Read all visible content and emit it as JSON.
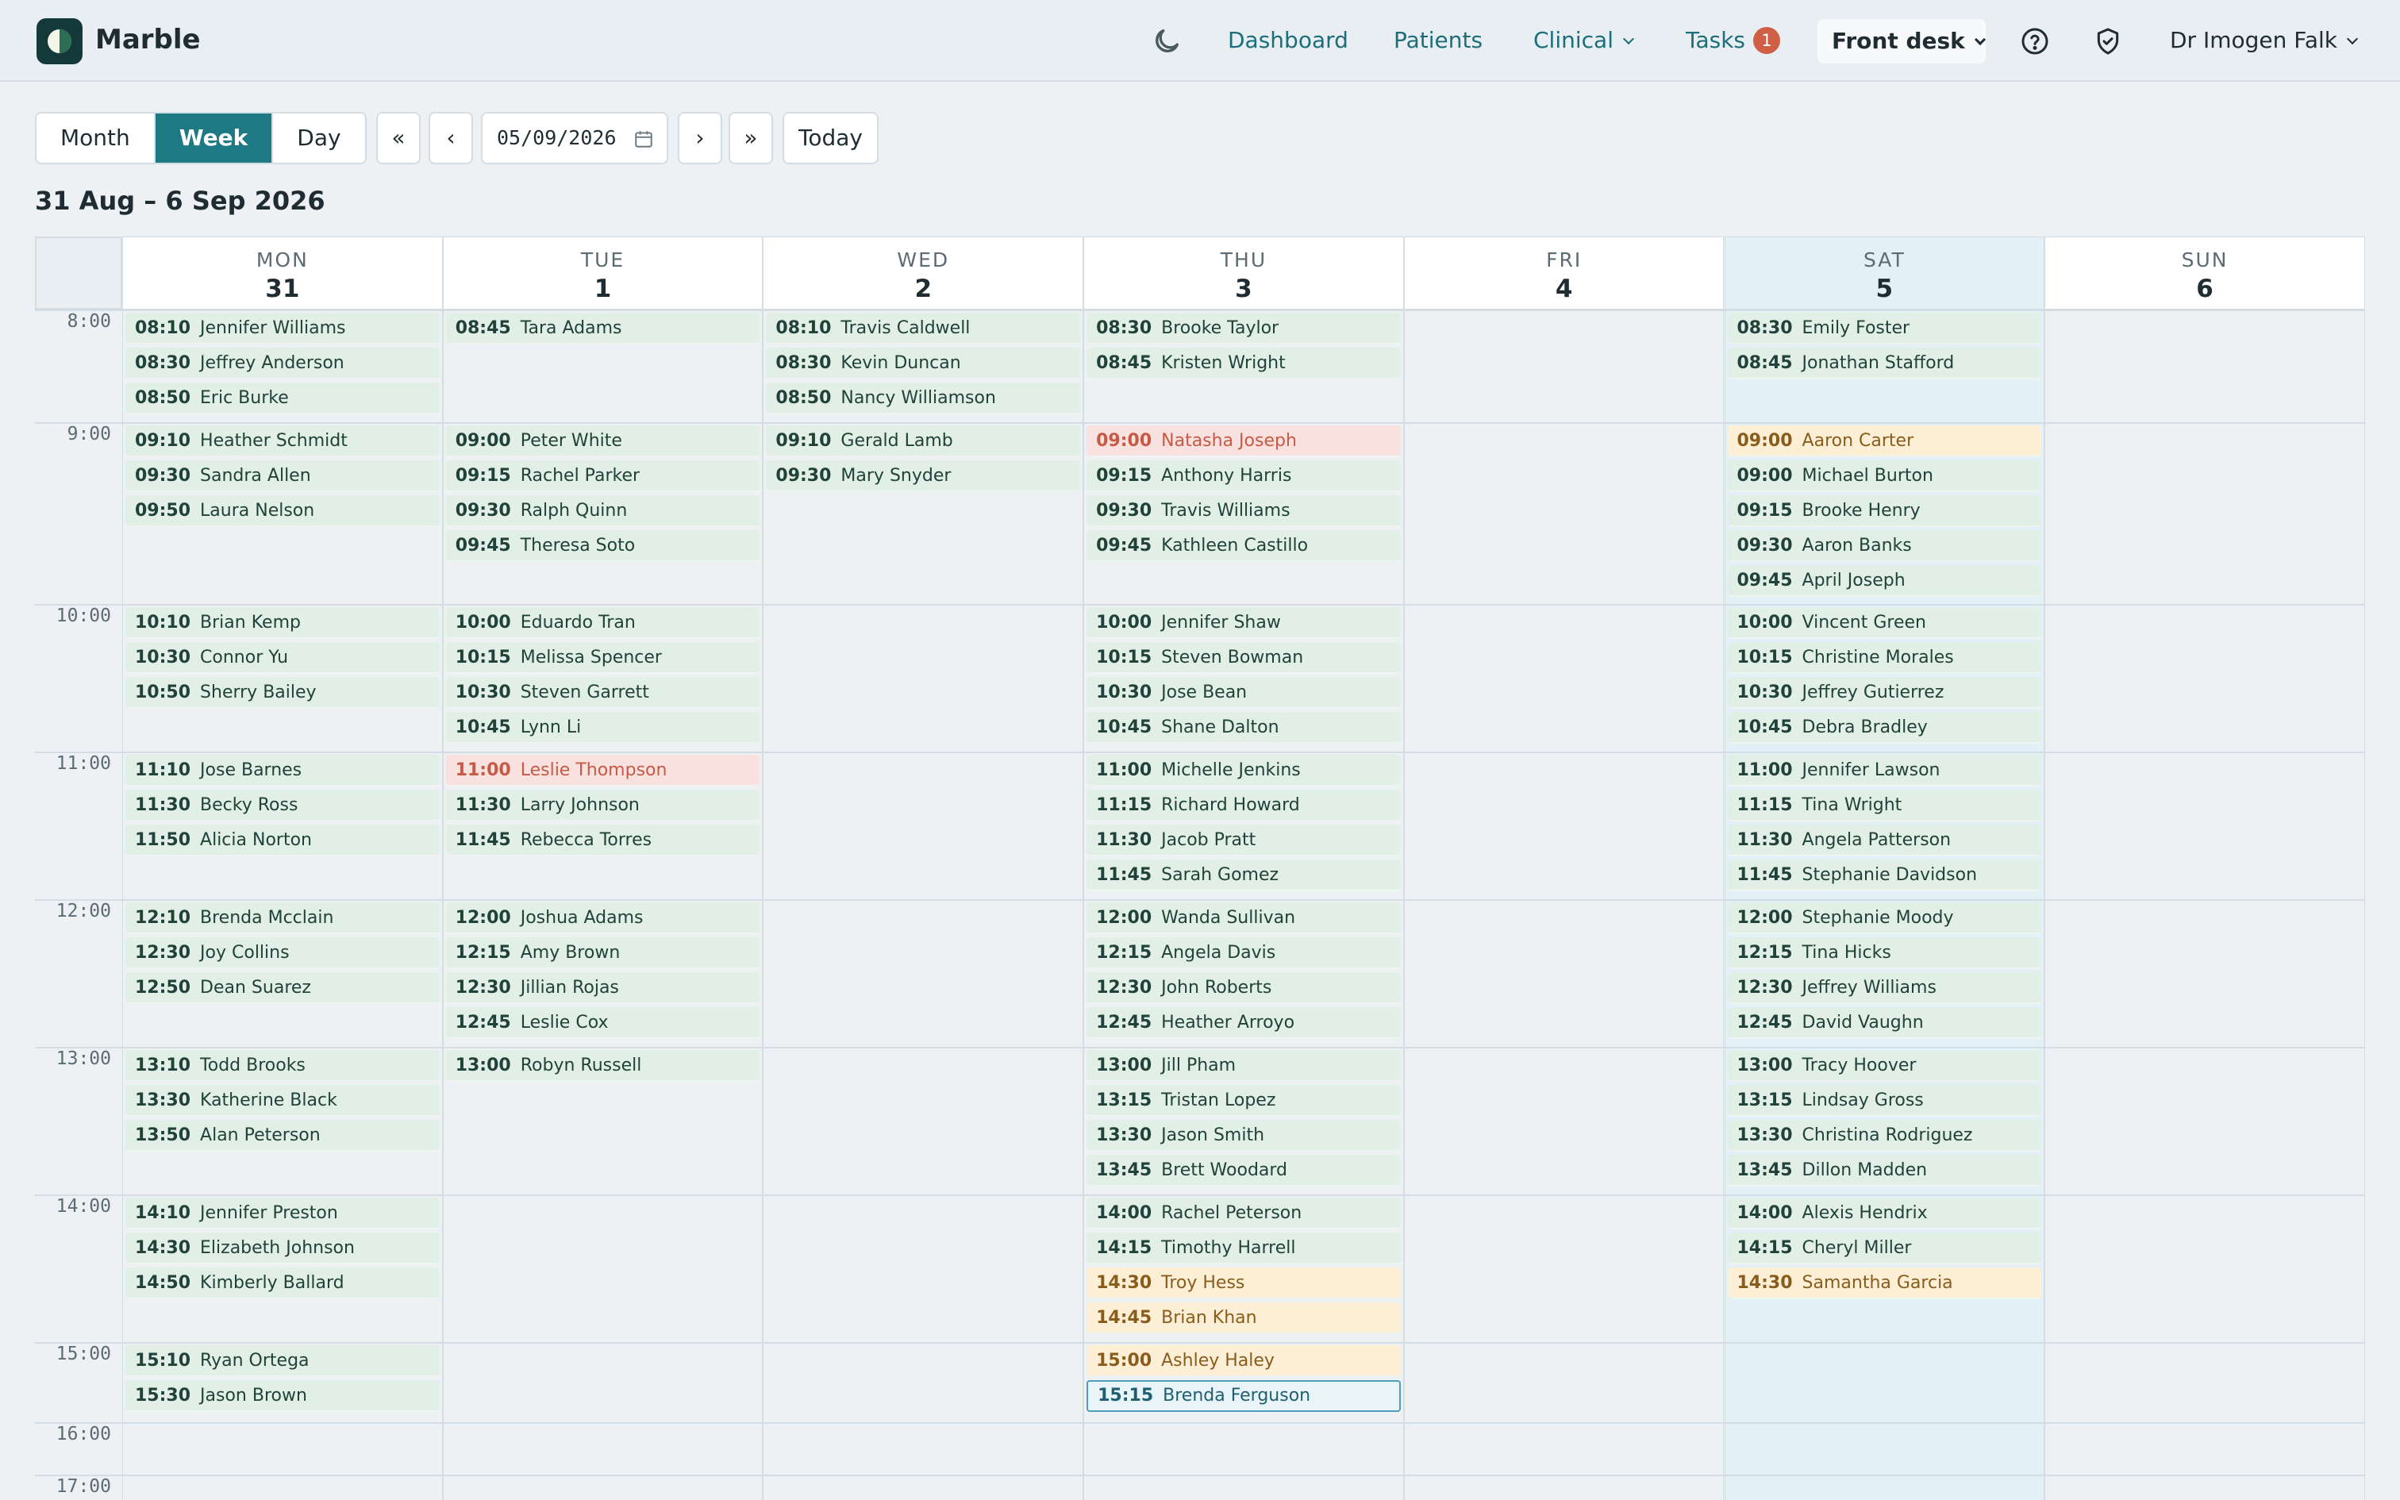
{
  "app": {
    "name": "Marble"
  },
  "nav": {
    "theme_icon": "moon-icon",
    "dashboard": "Dashboard",
    "patients": "Patients",
    "clinical": "Clinical",
    "tasks": "Tasks",
    "tasks_count": "1",
    "front_desk": "Front desk",
    "help_icon": "help-circle-icon",
    "shield_icon": "shield-check-icon",
    "user": "Dr Imogen Falk"
  },
  "toolbar": {
    "views": [
      "Month",
      "Week",
      "Day"
    ],
    "active_view": "Week",
    "first": "«",
    "prev": "‹",
    "date": "05/09/2026",
    "next": "›",
    "last": "»",
    "today": "Today"
  },
  "range_title": "31 Aug – 6 Sep 2026",
  "days": [
    {
      "name": "MON",
      "num": "31"
    },
    {
      "name": "TUE",
      "num": "1"
    },
    {
      "name": "WED",
      "num": "2"
    },
    {
      "name": "THU",
      "num": "3"
    },
    {
      "name": "FRI",
      "num": "4"
    },
    {
      "name": "SAT",
      "num": "5",
      "today": true
    },
    {
      "name": "SUN",
      "num": "6"
    }
  ],
  "hours": [
    "8:00",
    "9:00",
    "10:00",
    "11:00",
    "12:00",
    "13:00",
    "14:00",
    "15:00",
    "16:00",
    "17:00"
  ],
  "colors": {
    "booked": "#e2efe6",
    "urgent": "#f8e1de",
    "pending": "#fcefd5",
    "selected": "#e9f4f8",
    "accent": "#1d7a84"
  },
  "appointments": [
    {
      "day": 0,
      "hour": 0,
      "time": "08:10",
      "name": "Jennifer Williams"
    },
    {
      "day": 0,
      "hour": 0,
      "time": "08:30",
      "name": "Jeffrey Anderson"
    },
    {
      "day": 0,
      "hour": 0,
      "time": "08:50",
      "name": "Eric Burke"
    },
    {
      "day": 0,
      "hour": 1,
      "time": "09:10",
      "name": "Heather Schmidt"
    },
    {
      "day": 0,
      "hour": 1,
      "time": "09:30",
      "name": "Sandra Allen"
    },
    {
      "day": 0,
      "hour": 1,
      "time": "09:50",
      "name": "Laura Nelson"
    },
    {
      "day": 0,
      "hour": 2,
      "time": "10:10",
      "name": "Brian Kemp"
    },
    {
      "day": 0,
      "hour": 2,
      "time": "10:30",
      "name": "Connor Yu"
    },
    {
      "day": 0,
      "hour": 2,
      "time": "10:50",
      "name": "Sherry Bailey"
    },
    {
      "day": 0,
      "hour": 3,
      "time": "11:10",
      "name": "Jose Barnes"
    },
    {
      "day": 0,
      "hour": 3,
      "time": "11:30",
      "name": "Becky Ross"
    },
    {
      "day": 0,
      "hour": 3,
      "time": "11:50",
      "name": "Alicia Norton"
    },
    {
      "day": 0,
      "hour": 4,
      "time": "12:10",
      "name": "Brenda Mcclain"
    },
    {
      "day": 0,
      "hour": 4,
      "time": "12:30",
      "name": "Joy Collins"
    },
    {
      "day": 0,
      "hour": 4,
      "time": "12:50",
      "name": "Dean Suarez"
    },
    {
      "day": 0,
      "hour": 5,
      "time": "13:10",
      "name": "Todd Brooks"
    },
    {
      "day": 0,
      "hour": 5,
      "time": "13:30",
      "name": "Katherine Black"
    },
    {
      "day": 0,
      "hour": 5,
      "time": "13:50",
      "name": "Alan Peterson"
    },
    {
      "day": 0,
      "hour": 6,
      "time": "14:10",
      "name": "Jennifer Preston"
    },
    {
      "day": 0,
      "hour": 6,
      "time": "14:30",
      "name": "Elizabeth Johnson"
    },
    {
      "day": 0,
      "hour": 6,
      "time": "14:50",
      "name": "Kimberly Ballard"
    },
    {
      "day": 0,
      "hour": 7,
      "time": "15:10",
      "name": "Ryan Ortega"
    },
    {
      "day": 0,
      "hour": 7,
      "time": "15:30",
      "name": "Jason Brown"
    },
    {
      "day": 1,
      "hour": 0,
      "time": "08:45",
      "name": "Tara Adams"
    },
    {
      "day": 1,
      "hour": 1,
      "time": "09:00",
      "name": "Peter White"
    },
    {
      "day": 1,
      "hour": 1,
      "time": "09:15",
      "name": "Rachel Parker"
    },
    {
      "day": 1,
      "hour": 1,
      "time": "09:30",
      "name": "Ralph Quinn"
    },
    {
      "day": 1,
      "hour": 1,
      "time": "09:45",
      "name": "Theresa Soto"
    },
    {
      "day": 1,
      "hour": 2,
      "time": "10:00",
      "name": "Eduardo Tran"
    },
    {
      "day": 1,
      "hour": 2,
      "time": "10:15",
      "name": "Melissa Spencer"
    },
    {
      "day": 1,
      "hour": 2,
      "time": "10:30",
      "name": "Steven Garrett"
    },
    {
      "day": 1,
      "hour": 2,
      "time": "10:45",
      "name": "Lynn Li"
    },
    {
      "day": 1,
      "hour": 3,
      "time": "11:00",
      "name": "Leslie Thompson",
      "status": "urgent"
    },
    {
      "day": 1,
      "hour": 3,
      "time": "11:30",
      "name": "Larry Johnson"
    },
    {
      "day": 1,
      "hour": 3,
      "time": "11:45",
      "name": "Rebecca Torres"
    },
    {
      "day": 1,
      "hour": 4,
      "time": "12:00",
      "name": "Joshua Adams"
    },
    {
      "day": 1,
      "hour": 4,
      "time": "12:15",
      "name": "Amy Brown"
    },
    {
      "day": 1,
      "hour": 4,
      "time": "12:30",
      "name": "Jillian Rojas"
    },
    {
      "day": 1,
      "hour": 4,
      "time": "12:45",
      "name": "Leslie Cox"
    },
    {
      "day": 1,
      "hour": 5,
      "time": "13:00",
      "name": "Robyn Russell"
    },
    {
      "day": 2,
      "hour": 0,
      "time": "08:10",
      "name": "Travis Caldwell"
    },
    {
      "day": 2,
      "hour": 0,
      "time": "08:30",
      "name": "Kevin Duncan"
    },
    {
      "day": 2,
      "hour": 0,
      "time": "08:50",
      "name": "Nancy Williamson"
    },
    {
      "day": 2,
      "hour": 1,
      "time": "09:10",
      "name": "Gerald Lamb"
    },
    {
      "day": 2,
      "hour": 1,
      "time": "09:30",
      "name": "Mary Snyder"
    },
    {
      "day": 3,
      "hour": 0,
      "time": "08:30",
      "name": "Brooke Taylor"
    },
    {
      "day": 3,
      "hour": 0,
      "time": "08:45",
      "name": "Kristen Wright"
    },
    {
      "day": 3,
      "hour": 1,
      "time": "09:00",
      "name": "Natasha Joseph",
      "status": "urgent"
    },
    {
      "day": 3,
      "hour": 1,
      "time": "09:15",
      "name": "Anthony Harris"
    },
    {
      "day": 3,
      "hour": 1,
      "time": "09:30",
      "name": "Travis Williams"
    },
    {
      "day": 3,
      "hour": 1,
      "time": "09:45",
      "name": "Kathleen Castillo"
    },
    {
      "day": 3,
      "hour": 2,
      "time": "10:00",
      "name": "Jennifer Shaw"
    },
    {
      "day": 3,
      "hour": 2,
      "time": "10:15",
      "name": "Steven Bowman"
    },
    {
      "day": 3,
      "hour": 2,
      "time": "10:30",
      "name": "Jose Bean"
    },
    {
      "day": 3,
      "hour": 2,
      "time": "10:45",
      "name": "Shane Dalton"
    },
    {
      "day": 3,
      "hour": 3,
      "time": "11:00",
      "name": "Michelle Jenkins"
    },
    {
      "day": 3,
      "hour": 3,
      "time": "11:15",
      "name": "Richard Howard"
    },
    {
      "day": 3,
      "hour": 3,
      "time": "11:30",
      "name": "Jacob Pratt"
    },
    {
      "day": 3,
      "hour": 3,
      "time": "11:45",
      "name": "Sarah Gomez"
    },
    {
      "day": 3,
      "hour": 4,
      "time": "12:00",
      "name": "Wanda Sullivan"
    },
    {
      "day": 3,
      "hour": 4,
      "time": "12:15",
      "name": "Angela Davis"
    },
    {
      "day": 3,
      "hour": 4,
      "time": "12:30",
      "name": "John Roberts"
    },
    {
      "day": 3,
      "hour": 4,
      "time": "12:45",
      "name": "Heather Arroyo"
    },
    {
      "day": 3,
      "hour": 5,
      "time": "13:00",
      "name": "Jill Pham"
    },
    {
      "day": 3,
      "hour": 5,
      "time": "13:15",
      "name": "Tristan Lopez"
    },
    {
      "day": 3,
      "hour": 5,
      "time": "13:30",
      "name": "Jason Smith"
    },
    {
      "day": 3,
      "hour": 5,
      "time": "13:45",
      "name": "Brett Woodard"
    },
    {
      "day": 3,
      "hour": 6,
      "time": "14:00",
      "name": "Rachel Peterson"
    },
    {
      "day": 3,
      "hour": 6,
      "time": "14:15",
      "name": "Timothy Harrell"
    },
    {
      "day": 3,
      "hour": 6,
      "time": "14:30",
      "name": "Troy Hess",
      "status": "pending"
    },
    {
      "day": 3,
      "hour": 6,
      "time": "14:45",
      "name": "Brian Khan",
      "status": "pending"
    },
    {
      "day": 3,
      "hour": 7,
      "time": "15:00",
      "name": "Ashley Haley",
      "status": "pending"
    },
    {
      "day": 3,
      "hour": 7,
      "time": "15:15",
      "name": "Brenda Ferguson",
      "status": "selected"
    },
    {
      "day": 5,
      "hour": 0,
      "time": "08:30",
      "name": "Emily Foster"
    },
    {
      "day": 5,
      "hour": 0,
      "time": "08:45",
      "name": "Jonathan Stafford"
    },
    {
      "day": 5,
      "hour": 1,
      "time": "09:00",
      "name": "Aaron Carter",
      "status": "pending"
    },
    {
      "day": 5,
      "hour": 1,
      "time": "09:00",
      "name": "Michael Burton"
    },
    {
      "day": 5,
      "hour": 1,
      "time": "09:15",
      "name": "Brooke Henry"
    },
    {
      "day": 5,
      "hour": 1,
      "time": "09:30",
      "name": "Aaron Banks"
    },
    {
      "day": 5,
      "hour": 1,
      "time": "09:45",
      "name": "April Joseph"
    },
    {
      "day": 5,
      "hour": 2,
      "time": "10:00",
      "name": "Vincent Green"
    },
    {
      "day": 5,
      "hour": 2,
      "time": "10:15",
      "name": "Christine Morales"
    },
    {
      "day": 5,
      "hour": 2,
      "time": "10:30",
      "name": "Jeffrey Gutierrez"
    },
    {
      "day": 5,
      "hour": 2,
      "time": "10:45",
      "name": "Debra Bradley"
    },
    {
      "day": 5,
      "hour": 3,
      "time": "11:00",
      "name": "Jennifer Lawson"
    },
    {
      "day": 5,
      "hour": 3,
      "time": "11:15",
      "name": "Tina Wright"
    },
    {
      "day": 5,
      "hour": 3,
      "time": "11:30",
      "name": "Angela Patterson"
    },
    {
      "day": 5,
      "hour": 3,
      "time": "11:45",
      "name": "Stephanie Davidson"
    },
    {
      "day": 5,
      "hour": 4,
      "time": "12:00",
      "name": "Stephanie Moody"
    },
    {
      "day": 5,
      "hour": 4,
      "time": "12:15",
      "name": "Tina Hicks"
    },
    {
      "day": 5,
      "hour": 4,
      "time": "12:30",
      "name": "Jeffrey Williams"
    },
    {
      "day": 5,
      "hour": 4,
      "time": "12:45",
      "name": "David Vaughn"
    },
    {
      "day": 5,
      "hour": 5,
      "time": "13:00",
      "name": "Tracy Hoover"
    },
    {
      "day": 5,
      "hour": 5,
      "time": "13:15",
      "name": "Lindsay Gross"
    },
    {
      "day": 5,
      "hour": 5,
      "time": "13:30",
      "name": "Christina Rodriguez"
    },
    {
      "day": 5,
      "hour": 5,
      "time": "13:45",
      "name": "Dillon Madden"
    },
    {
      "day": 5,
      "hour": 6,
      "time": "14:00",
      "name": "Alexis Hendrix"
    },
    {
      "day": 5,
      "hour": 6,
      "time": "14:15",
      "name": "Cheryl Miller"
    },
    {
      "day": 5,
      "hour": 6,
      "time": "14:30",
      "name": "Samantha Garcia",
      "status": "pending"
    }
  ]
}
